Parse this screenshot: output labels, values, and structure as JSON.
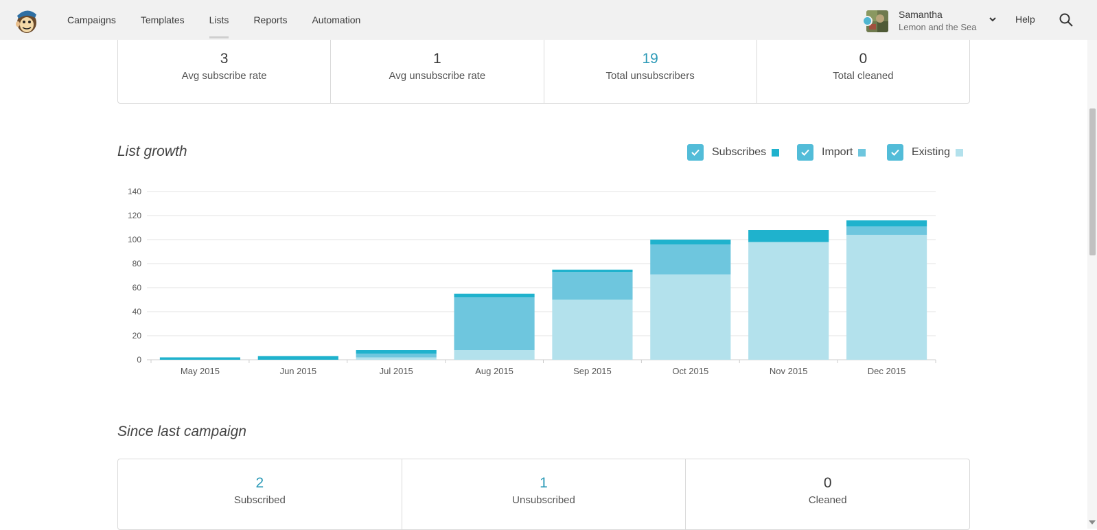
{
  "nav": {
    "items": [
      "Campaigns",
      "Templates",
      "Lists",
      "Reports",
      "Automation"
    ],
    "active": "Lists"
  },
  "user": {
    "name": "Samantha",
    "org": "Lemon and the Sea"
  },
  "help_label": "Help",
  "top_stats": [
    {
      "value": "3",
      "label": "Avg subscribe rate",
      "highlight": false
    },
    {
      "value": "1",
      "label": "Avg unsubscribe rate",
      "highlight": false
    },
    {
      "value": "19",
      "label": "Total unsubscribers",
      "highlight": true
    },
    {
      "value": "0",
      "label": "Total cleaned",
      "highlight": false
    }
  ],
  "list_growth": {
    "title": "List growth",
    "legend": [
      {
        "label": "Subscribes",
        "color": "#1fb2cd",
        "checked": true
      },
      {
        "label": "Import",
        "color": "#6ec6de",
        "checked": true
      },
      {
        "label": "Existing",
        "color": "#b3e1ec",
        "checked": true
      }
    ]
  },
  "chart_data": {
    "type": "bar",
    "stacked": true,
    "categories": [
      "May 2015",
      "Jun 2015",
      "Jul 2015",
      "Aug 2015",
      "Sep 2015",
      "Oct 2015",
      "Nov 2015",
      "Dec 2015"
    ],
    "series": [
      {
        "name": "Existing",
        "color": "#b3e1ec",
        "values": [
          0,
          0,
          2,
          8,
          50,
          71,
          98,
          104
        ]
      },
      {
        "name": "Import",
        "color": "#6ec6de",
        "values": [
          0,
          0,
          3,
          44,
          23,
          25,
          0,
          7
        ]
      },
      {
        "name": "Subscribes",
        "color": "#1fb2cd",
        "values": [
          2,
          3,
          3,
          3,
          2,
          4,
          10,
          5
        ]
      }
    ],
    "ylim": [
      0,
      140
    ],
    "yticks": [
      0,
      20,
      40,
      60,
      80,
      100,
      120,
      140
    ],
    "grid": true,
    "xlabel": "",
    "ylabel": ""
  },
  "since_last": {
    "title": "Since last campaign",
    "stats": [
      {
        "value": "2",
        "label": "Subscribed",
        "highlight": true
      },
      {
        "value": "1",
        "label": "Unsubscribed",
        "highlight": true
      },
      {
        "value": "0",
        "label": "Cleaned",
        "highlight": false
      }
    ]
  }
}
